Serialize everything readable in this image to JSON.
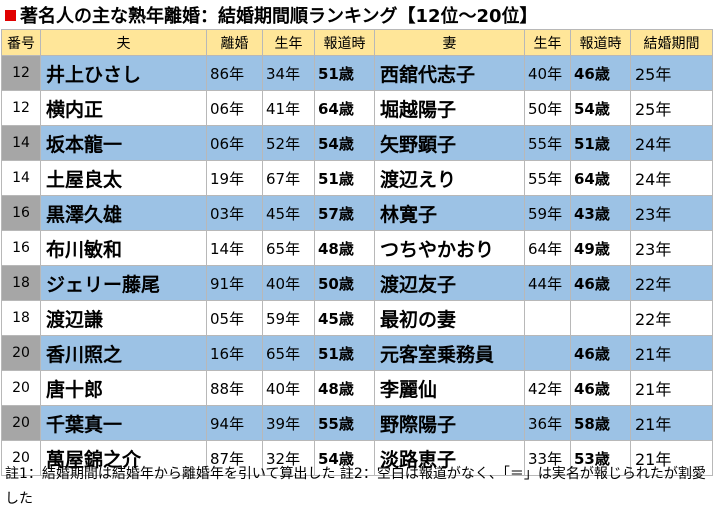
{
  "title": "著名人の主な熟年離婚：結婚期間順ランキング【12位～20位】",
  "headers": [
    "番号",
    "夫",
    "離婚",
    "生年",
    "報道時",
    "妻",
    "生年",
    "報道時",
    "結婚期間"
  ],
  "rows": [
    {
      "rank": "12",
      "husband": "井上ひさし",
      "divorce": "86年",
      "h_birth": "34年",
      "h_age": "51歳",
      "wife": "西舘代志子",
      "w_birth": "40年",
      "w_age": "46歳",
      "duration": "25年"
    },
    {
      "rank": "12",
      "husband": "横内正",
      "divorce": "06年",
      "h_birth": "41年",
      "h_age": "64歳",
      "wife": "堀越陽子",
      "w_birth": "50年",
      "w_age": "54歳",
      "duration": "25年"
    },
    {
      "rank": "14",
      "husband": "坂本龍一",
      "divorce": "06年",
      "h_birth": "52年",
      "h_age": "54歳",
      "wife": "矢野顕子",
      "w_birth": "55年",
      "w_age": "51歳",
      "duration": "24年"
    },
    {
      "rank": "14",
      "husband": "土屋良太",
      "divorce": "19年",
      "h_birth": "67年",
      "h_age": "51歳",
      "wife": "渡辺えり",
      "w_birth": "55年",
      "w_age": "64歳",
      "duration": "24年"
    },
    {
      "rank": "16",
      "husband": "黒澤久雄",
      "divorce": "03年",
      "h_birth": "45年",
      "h_age": "57歳",
      "wife": "林寛子",
      "w_birth": "59年",
      "w_age": "43歳",
      "duration": "23年"
    },
    {
      "rank": "16",
      "husband": "布川敏和",
      "divorce": "14年",
      "h_birth": "65年",
      "h_age": "48歳",
      "wife": "つちやかおり",
      "w_birth": "64年",
      "w_age": "49歳",
      "duration": "23年"
    },
    {
      "rank": "18",
      "husband": "ジェリー藤尾",
      "divorce": "91年",
      "h_birth": "40年",
      "h_age": "50歳",
      "wife": "渡辺友子",
      "w_birth": "44年",
      "w_age": "46歳",
      "duration": "22年"
    },
    {
      "rank": "18",
      "husband": "渡辺謙",
      "divorce": "05年",
      "h_birth": "59年",
      "h_age": "45歳",
      "wife": "最初の妻",
      "w_birth": "",
      "w_age": "",
      "duration": "22年"
    },
    {
      "rank": "20",
      "husband": "香川照之",
      "divorce": "16年",
      "h_birth": "65年",
      "h_age": "51歳",
      "wife": "元客室乗務員",
      "w_birth": "",
      "w_age": "46歳",
      "duration": "21年"
    },
    {
      "rank": "20",
      "husband": "唐十郎",
      "divorce": "88年",
      "h_birth": "40年",
      "h_age": "48歳",
      "wife": "李麗仙",
      "w_birth": "42年",
      "w_age": "46歳",
      "duration": "21年"
    },
    {
      "rank": "20",
      "husband": "千葉真一",
      "divorce": "94年",
      "h_birth": "39年",
      "h_age": "55歳",
      "wife": "野際陽子",
      "w_birth": "36年",
      "w_age": "58歳",
      "duration": "21年"
    },
    {
      "rank": "20",
      "husband": "萬屋錦之介",
      "divorce": "87年",
      "h_birth": "32年",
      "h_age": "54歳",
      "wife": "淡路恵子",
      "w_birth": "33年",
      "w_age": "53歳",
      "duration": "21年"
    }
  ],
  "note": "註1：結婚期間は結婚年から離婚年を引いて算出した 註2：空白は報道がなく、「＝」は実名が報じられたが割愛した",
  "colors": {
    "header_bg": "#ffe699",
    "row_blue": "#9cc2e5",
    "rank_gray": "#a6a6a6",
    "title_mark": "#e00000"
  }
}
